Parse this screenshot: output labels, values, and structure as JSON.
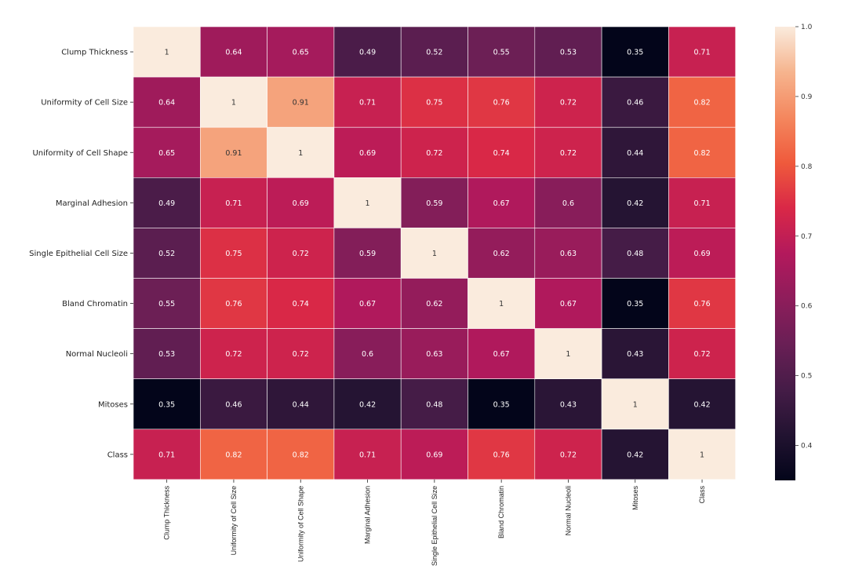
{
  "chart_data": {
    "type": "heatmap",
    "rows": [
      "Clump Thickness",
      "Uniformity of Cell Size",
      "Uniformity of Cell Shape",
      "Marginal Adhesion",
      "Single Epithelial Cell Size",
      "Bland Chromatin",
      "Normal Nucleoli",
      "Mitoses",
      "Class"
    ],
    "columns": [
      "Clump Thickness",
      "Uniformity of Cell Size",
      "Uniformity of Cell Shape",
      "Marginal Adhesion",
      "Single Epithelial Cell Size",
      "Bland Chromatin",
      "Normal Nucleoli",
      "Mitoses",
      "Class"
    ],
    "values": [
      [
        1,
        0.64,
        0.65,
        0.49,
        0.52,
        0.55,
        0.53,
        0.35,
        0.71
      ],
      [
        0.64,
        1,
        0.91,
        0.71,
        0.75,
        0.76,
        0.72,
        0.46,
        0.82
      ],
      [
        0.65,
        0.91,
        1,
        0.69,
        0.72,
        0.74,
        0.72,
        0.44,
        0.82
      ],
      [
        0.49,
        0.71,
        0.69,
        1,
        0.59,
        0.67,
        0.6,
        0.42,
        0.71
      ],
      [
        0.52,
        0.75,
        0.72,
        0.59,
        1,
        0.62,
        0.63,
        0.48,
        0.69
      ],
      [
        0.55,
        0.76,
        0.74,
        0.67,
        0.62,
        1,
        0.67,
        0.35,
        0.76
      ],
      [
        0.53,
        0.72,
        0.72,
        0.6,
        0.63,
        0.67,
        1,
        0.43,
        0.72
      ],
      [
        0.35,
        0.46,
        0.44,
        0.42,
        0.48,
        0.35,
        0.43,
        1,
        0.42
      ],
      [
        0.71,
        0.82,
        0.82,
        0.71,
        0.69,
        0.76,
        0.72,
        0.42,
        1
      ]
    ],
    "cell_labels": [
      [
        "1",
        "0.64",
        "0.65",
        "0.49",
        "0.52",
        "0.55",
        "0.53",
        "0.35",
        "0.71"
      ],
      [
        "0.64",
        "1",
        "0.91",
        "0.71",
        "0.75",
        "0.76",
        "0.72",
        "0.46",
        "0.82"
      ],
      [
        "0.65",
        "0.91",
        "1",
        "0.69",
        "0.72",
        "0.74",
        "0.72",
        "0.44",
        "0.82"
      ],
      [
        "0.49",
        "0.71",
        "0.69",
        "1",
        "0.59",
        "0.67",
        "0.6",
        "0.42",
        "0.71"
      ],
      [
        "0.52",
        "0.75",
        "0.72",
        "0.59",
        "1",
        "0.62",
        "0.63",
        "0.48",
        "0.69"
      ],
      [
        "0.55",
        "0.76",
        "0.74",
        "0.67",
        "0.62",
        "1",
        "0.67",
        "0.35",
        "0.76"
      ],
      [
        "0.53",
        "0.72",
        "0.72",
        "0.6",
        "0.63",
        "0.67",
        "1",
        "0.43",
        "0.72"
      ],
      [
        "0.35",
        "0.46",
        "0.44",
        "0.42",
        "0.48",
        "0.35",
        "0.43",
        "1",
        "0.42"
      ],
      [
        "0.71",
        "0.82",
        "0.82",
        "0.71",
        "0.69",
        "0.76",
        "0.72",
        "0.42",
        "1"
      ]
    ],
    "colormap": "rocket",
    "color_range": [
      0.35,
      1.0
    ],
    "colorbar_ticks": [
      1.0,
      0.9,
      0.8,
      0.7,
      0.6,
      0.5,
      0.4
    ],
    "colorbar_tick_labels": [
      "1.0",
      "0.9",
      "0.8",
      "0.7",
      "0.6",
      "0.5",
      "0.4"
    ],
    "colorbar_position": "right",
    "grid": false,
    "title": "",
    "xlabel": "",
    "ylabel": ""
  }
}
